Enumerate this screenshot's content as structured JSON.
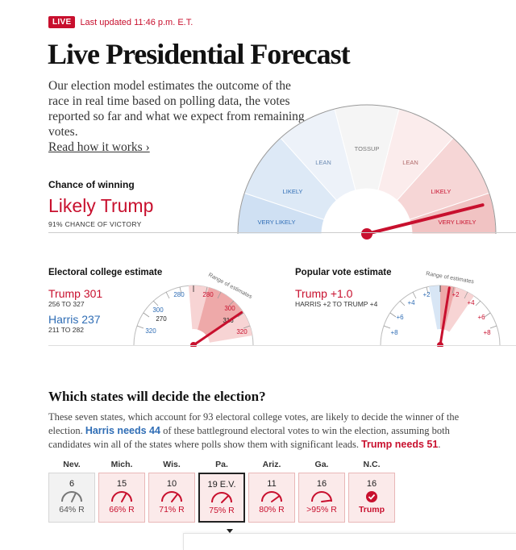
{
  "header": {
    "live_badge": "LIVE",
    "last_updated": "Last updated 11:46 p.m. E.T.",
    "title": "Live Presidential Forecast",
    "intro": "Our election model estimates the outcome of the race in real time based on polling data, the votes reported so far and what we expect from remaining votes.",
    "read_more": "Read how it works ›"
  },
  "chance": {
    "label": "Chance of winning",
    "headline": "Likely Trump",
    "sub": "91% CHANCE OF VICTORY",
    "gauge_labels": {
      "very_likely_left": "VERY LIKELY",
      "likely_left": "LIKELY",
      "lean_left": "LEAN",
      "tossup": "TOSSUP",
      "lean_right": "LEAN",
      "likely_right": "LIKELY",
      "very_likely_right": "VERY LIKELY"
    },
    "trump_probability": 0.91
  },
  "electoral": {
    "label": "Electoral college estimate",
    "trump_line": "Trump 301",
    "trump_range": "256 TO 327",
    "harris_line": "Harris 237",
    "harris_range": "211 TO 282",
    "range_caption": "Range of estimates",
    "ticks": {
      "d320": "320",
      "d300": "300",
      "d280": "280",
      "center": "270",
      "r280": "280",
      "r300": "300",
      "r316": "316",
      "r320": "320"
    },
    "estimate": 301
  },
  "popular": {
    "label": "Popular vote estimate",
    "headline": "Trump +1.0",
    "range": "HARRIS +2 TO TRUMP +4",
    "range_caption": "Range of estimates",
    "ticks": {
      "d8": "+8",
      "d6": "+6",
      "d4": "+4",
      "d2": "+2",
      "r2": "+2",
      "r4": "+4",
      "r6": "+6",
      "r8": "+8"
    },
    "estimate": 1.0
  },
  "states_section": {
    "title": "Which states will decide the election?",
    "desc_1": "These seven states, which account for 93 electoral college votes, are likely to decide the winner of the election. ",
    "harris_needs": "Harris needs 44",
    "desc_2": " of these battleground electoral votes to win the election, assuming both candidates win all of the states where polls show them with significant leads. ",
    "trump_needs": "Trump needs 51",
    "desc_3": ".",
    "states": [
      {
        "abbr": "Nev.",
        "ev": "6",
        "pct": "64% R",
        "prob": 0.64,
        "style": "gray"
      },
      {
        "abbr": "Mich.",
        "ev": "15",
        "pct": "66% R",
        "prob": 0.66,
        "style": "red"
      },
      {
        "abbr": "Wis.",
        "ev": "10",
        "pct": "71% R",
        "prob": 0.71,
        "style": "red"
      },
      {
        "abbr": "Pa.",
        "ev": "19  E.V.",
        "pct": "75% R",
        "prob": 0.75,
        "style": "sel"
      },
      {
        "abbr": "Ariz.",
        "ev": "11",
        "pct": "80% R",
        "prob": 0.8,
        "style": "red"
      },
      {
        "abbr": "Ga.",
        "ev": "16",
        "pct": ">95% R",
        "prob": 0.96,
        "style": "red"
      },
      {
        "abbr": "N.C.",
        "ev": "16",
        "pct": "Trump",
        "prob": 1.0,
        "style": "win"
      }
    ]
  },
  "colors": {
    "red": "#c8102e",
    "blue": "#2f6db5"
  }
}
